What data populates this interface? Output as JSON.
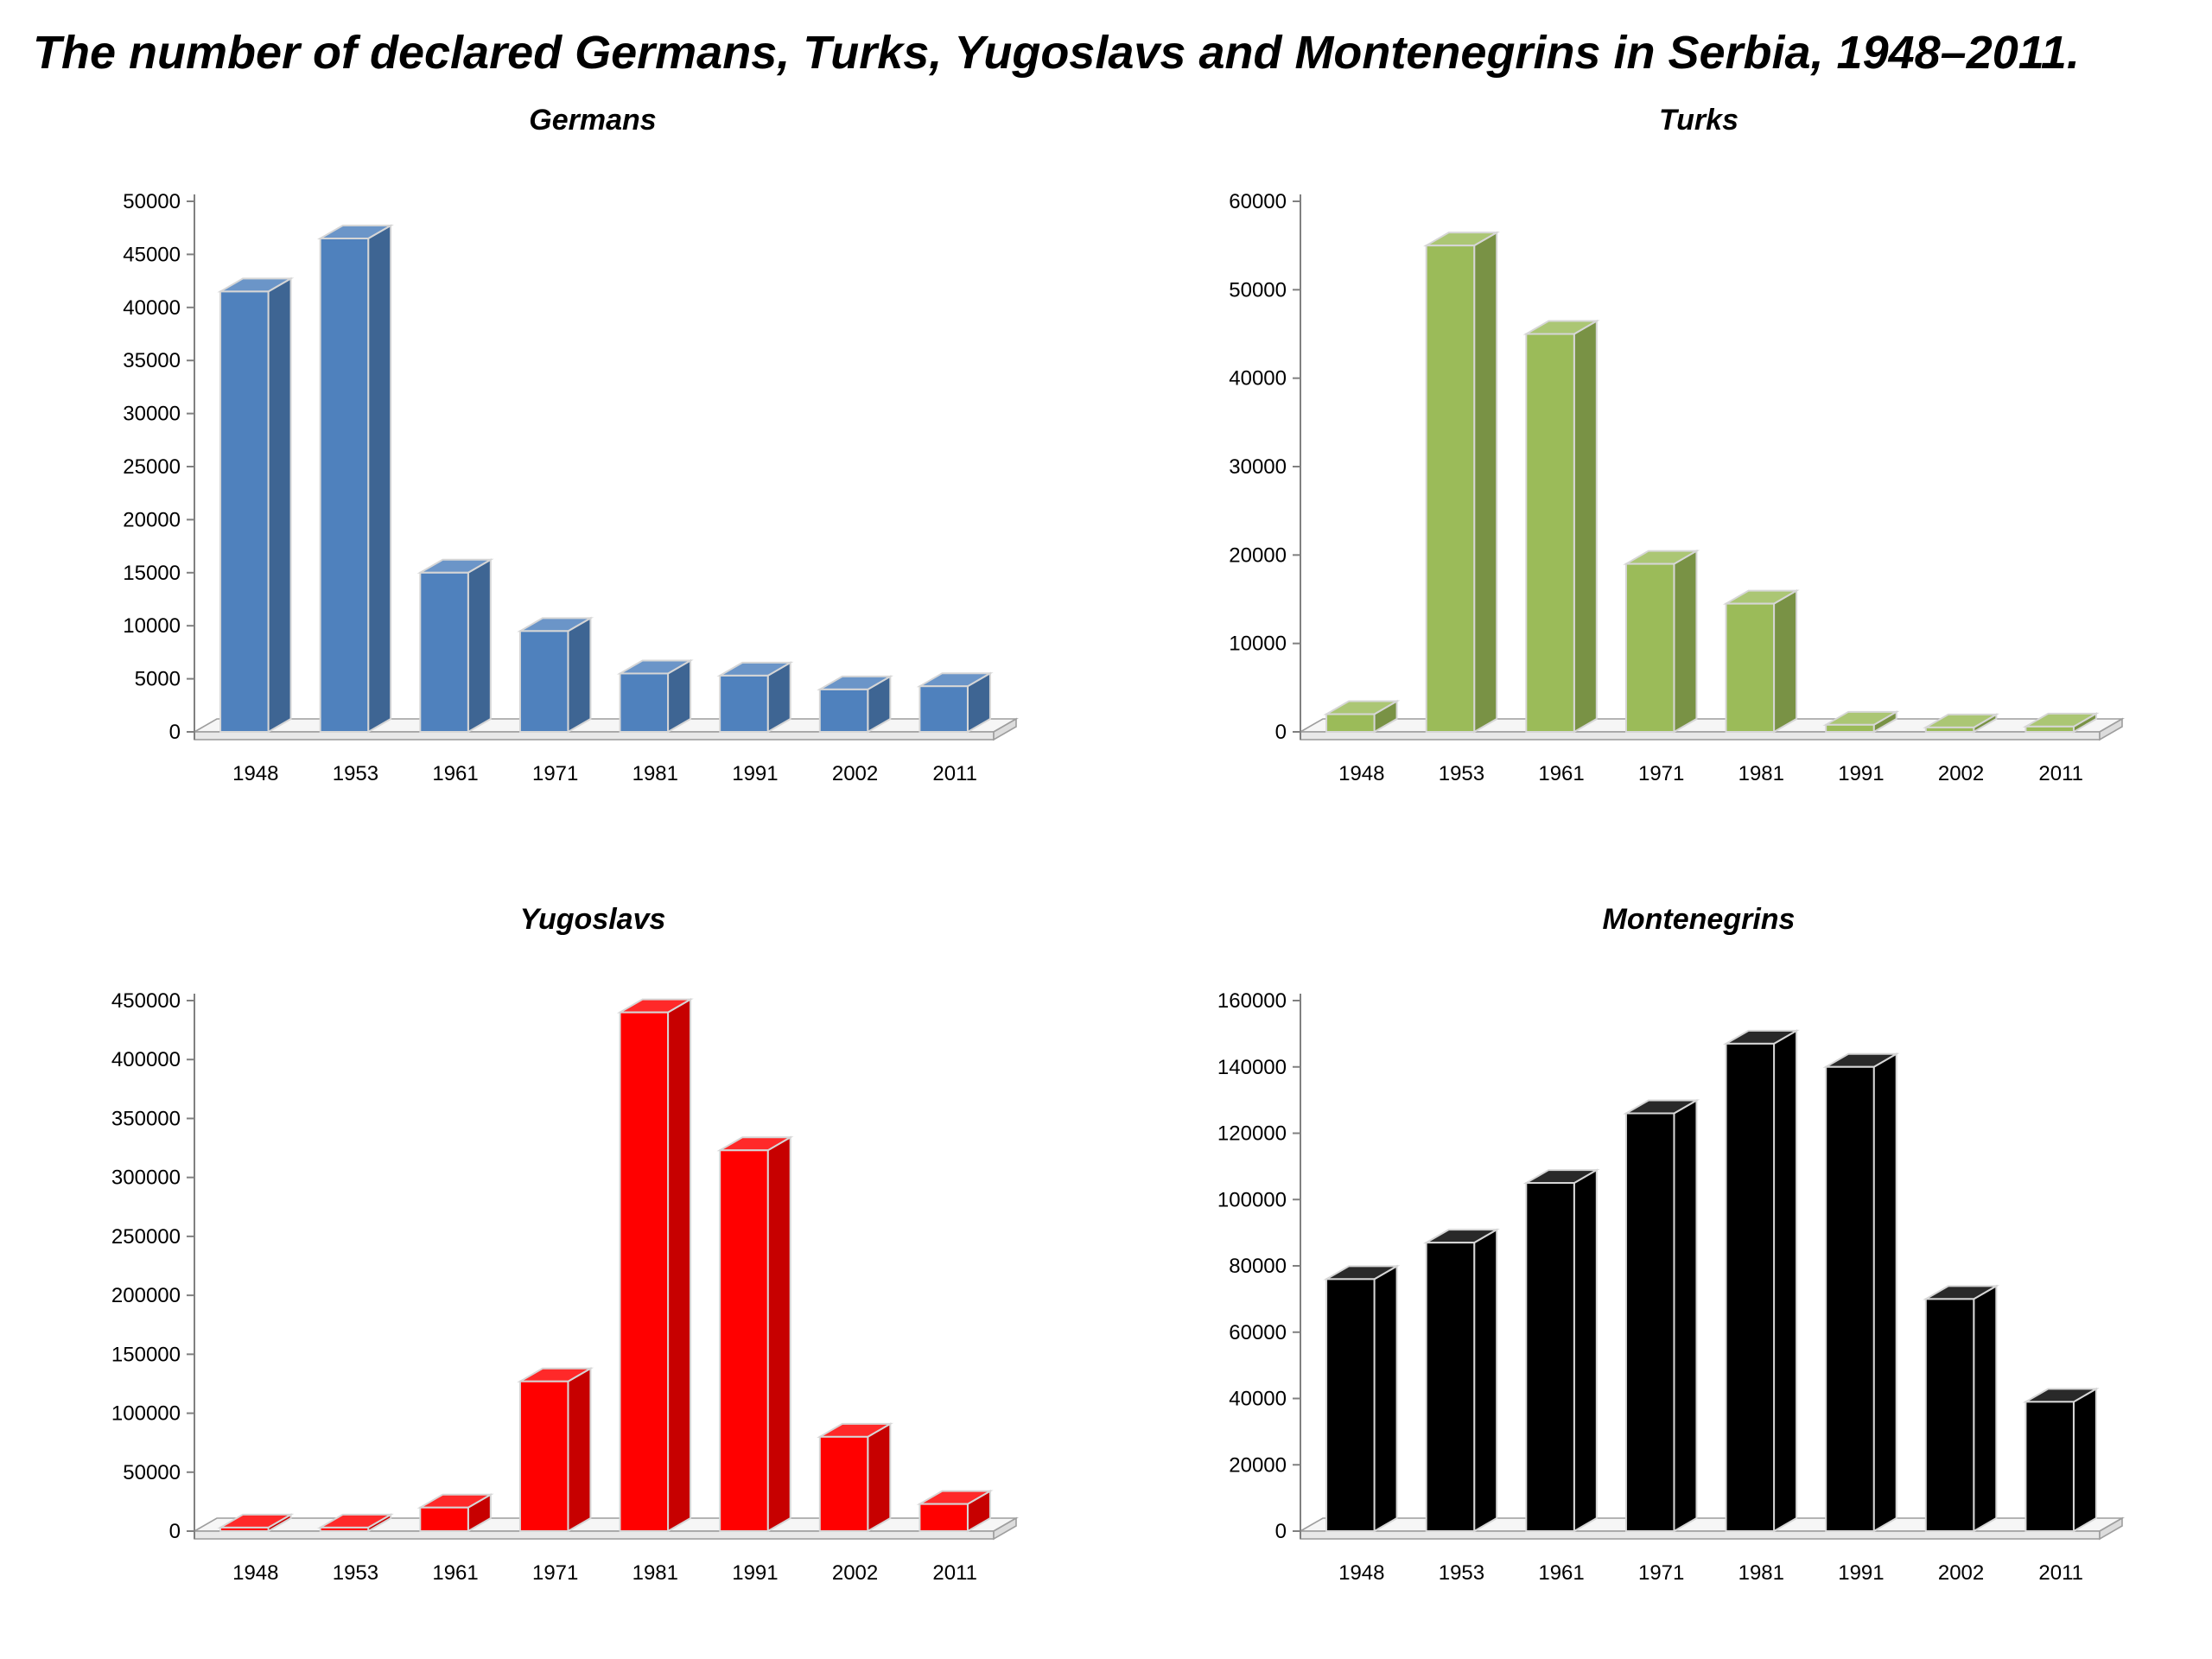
{
  "title": "The number of declared Germans, Turks, Yugoslavs and Montenegrins  in Serbia, 1948–2011.",
  "chart_data": [
    {
      "type": "bar",
      "style": "3d-column",
      "title": "Germans",
      "color": "#4F81BD",
      "categories": [
        "1948",
        "1953",
        "1961",
        "1971",
        "1981",
        "1991",
        "2002",
        "2011"
      ],
      "values": [
        41500,
        46500,
        15000,
        9500,
        5500,
        5300,
        4000,
        4300
      ],
      "ylim": [
        0,
        50000
      ],
      "ystep": 5000,
      "xlabel": "",
      "ylabel": "",
      "grid": false,
      "legend": "none"
    },
    {
      "type": "bar",
      "style": "3d-column",
      "title": "Turks",
      "color": "#9BBB59",
      "categories": [
        "1948",
        "1953",
        "1961",
        "1971",
        "1981",
        "1991",
        "2002",
        "2011"
      ],
      "values": [
        2000,
        55000,
        45000,
        19000,
        14500,
        800,
        500,
        600
      ],
      "ylim": [
        0,
        60000
      ],
      "ystep": 10000,
      "xlabel": "",
      "ylabel": "",
      "grid": false,
      "legend": "none"
    },
    {
      "type": "bar",
      "style": "3d-column",
      "title": "Yugoslavs",
      "color": "#FF0000",
      "categories": [
        "1948",
        "1953",
        "1961",
        "1971",
        "1981",
        "1991",
        "2002",
        "2011"
      ],
      "values": [
        3000,
        3000,
        20000,
        127000,
        440000,
        323000,
        80000,
        23000
      ],
      "ylim": [
        0,
        450000
      ],
      "ystep": 50000,
      "xlabel": "",
      "ylabel": "",
      "grid": false,
      "legend": "none"
    },
    {
      "type": "bar",
      "style": "3d-column",
      "title": "Montenegrins",
      "color": "#000000",
      "categories": [
        "1948",
        "1953",
        "1961",
        "1971",
        "1981",
        "1991",
        "2002",
        "2011"
      ],
      "values": [
        76000,
        87000,
        105000,
        126000,
        147000,
        140000,
        70000,
        39000
      ],
      "ylim": [
        0,
        160000
      ],
      "ystep": 20000,
      "xlabel": "",
      "ylabel": "",
      "grid": false,
      "legend": "none"
    }
  ]
}
